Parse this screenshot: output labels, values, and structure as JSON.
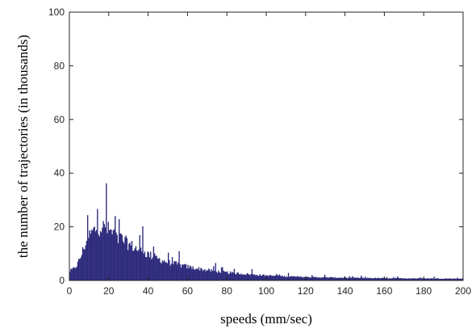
{
  "chart_data": {
    "type": "bar",
    "title": "",
    "xlabel": "speeds (mm/sec)",
    "ylabel": "the number of trajectories (in thousands)",
    "xlim": [
      0,
      200
    ],
    "ylim": [
      0,
      100
    ],
    "xticks": [
      "0",
      "20",
      "40",
      "60",
      "80",
      "100",
      "120",
      "140",
      "160",
      "180",
      "200"
    ],
    "yticks": [
      "0",
      "20",
      "40",
      "60",
      "80",
      "100"
    ],
    "grid": false,
    "bar_color": "#2e2a7c",
    "bin_width": 0.5,
    "envelope_x": [
      0,
      2,
      4,
      6,
      8,
      10,
      12,
      14,
      16,
      18,
      20,
      25,
      30,
      35,
      40,
      45,
      50,
      55,
      60,
      70,
      80,
      90,
      100,
      110,
      120,
      140,
      160,
      180,
      200
    ],
    "envelope_y": [
      4,
      5,
      7,
      11,
      16,
      19.5,
      21.5,
      23,
      23.5,
      23,
      22,
      19,
      16,
      13.5,
      11.5,
      9.5,
      8,
      7,
      6,
      4.5,
      3.5,
      2.8,
      2.2,
      1.8,
      1.5,
      1.2,
      1.0,
      0.9,
      0.8
    ]
  }
}
